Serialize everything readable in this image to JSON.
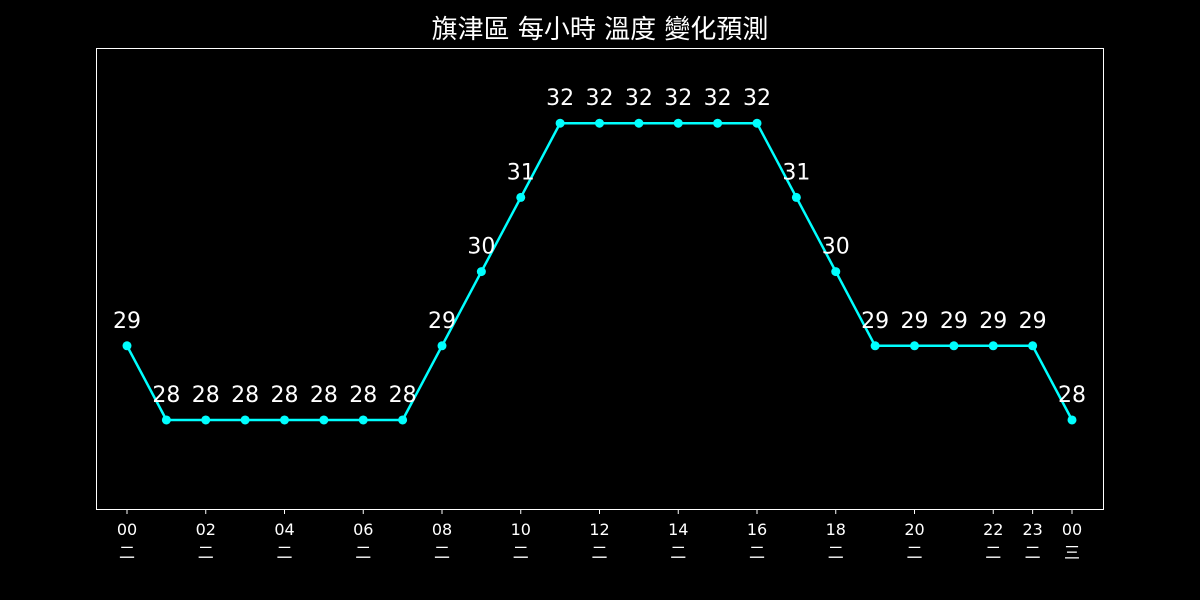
{
  "chart_data": {
    "type": "line",
    "title": "旗津區 每小時 溫度 變化預測",
    "xlabel": "",
    "ylabel": "",
    "x": [
      "00",
      "01",
      "02",
      "03",
      "04",
      "05",
      "06",
      "07",
      "08",
      "09",
      "10",
      "11",
      "12",
      "13",
      "14",
      "15",
      "16",
      "17",
      "18",
      "19",
      "20",
      "21",
      "22",
      "23",
      "00"
    ],
    "values": [
      29,
      28,
      28,
      28,
      28,
      28,
      28,
      28,
      29,
      30,
      31,
      32,
      32,
      32,
      32,
      32,
      32,
      31,
      30,
      29,
      29,
      29,
      29,
      29,
      28
    ],
    "ticks": [
      {
        "index": 0,
        "hour": "00",
        "day": "二"
      },
      {
        "index": 2,
        "hour": "02",
        "day": "二"
      },
      {
        "index": 4,
        "hour": "04",
        "day": "二"
      },
      {
        "index": 6,
        "hour": "06",
        "day": "二"
      },
      {
        "index": 8,
        "hour": "08",
        "day": "二"
      },
      {
        "index": 10,
        "hour": "10",
        "day": "二"
      },
      {
        "index": 12,
        "hour": "12",
        "day": "二"
      },
      {
        "index": 14,
        "hour": "14",
        "day": "二"
      },
      {
        "index": 16,
        "hour": "16",
        "day": "二"
      },
      {
        "index": 18,
        "hour": "18",
        "day": "二"
      },
      {
        "index": 20,
        "hour": "20",
        "day": "二"
      },
      {
        "index": 22,
        "hour": "22",
        "day": "二"
      },
      {
        "index": 23,
        "hour": "23",
        "day": "二"
      },
      {
        "index": 24,
        "hour": "00",
        "day": "三"
      }
    ],
    "ylim": [
      26.8,
      33.0
    ],
    "grid": false,
    "colors": {
      "line": "#00ffff",
      "background": "#000000",
      "text": "#ffffff",
      "frame": "#ffffff"
    }
  }
}
